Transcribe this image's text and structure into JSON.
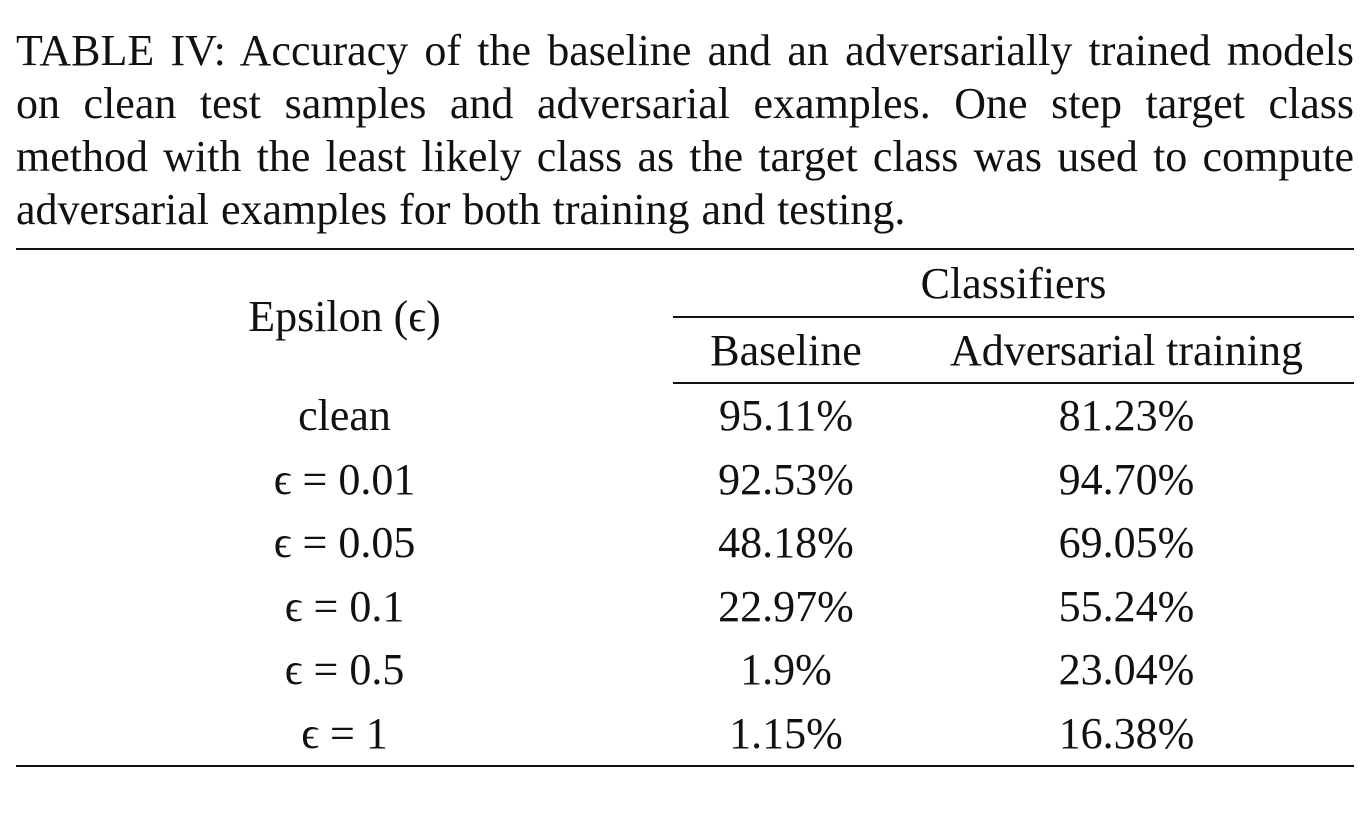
{
  "caption": {
    "label": "TABLE IV:",
    "text": "Accuracy of the baseline and an adversarially trained models on clean test samples and adversarial examples. One step target class method with the least likely class as the target class was used to compute adversarial examples for both training and testing."
  },
  "table": {
    "row_header": "Epsilon (ϵ)",
    "group_header": "Classifiers",
    "columns": [
      "Baseline",
      "Adversarial training"
    ],
    "rows": [
      {
        "epsilon": "clean",
        "baseline": "95.11%",
        "adversarial": "81.23%"
      },
      {
        "epsilon": "ϵ = 0.01",
        "baseline": "92.53%",
        "adversarial": "94.70%"
      },
      {
        "epsilon": "ϵ = 0.05",
        "baseline": "48.18%",
        "adversarial": "69.05%"
      },
      {
        "epsilon": "ϵ = 0.1",
        "baseline": "22.97%",
        "adversarial": "55.24%"
      },
      {
        "epsilon": "ϵ = 0.5",
        "baseline": "1.9%",
        "adversarial": "23.04%"
      },
      {
        "epsilon": "ϵ = 1",
        "baseline": "1.15%",
        "adversarial": "16.38%"
      }
    ]
  }
}
